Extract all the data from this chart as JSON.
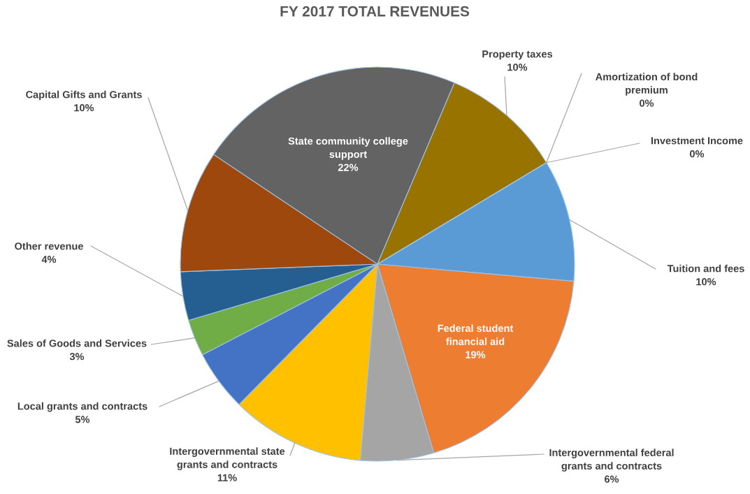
{
  "chart_data": {
    "type": "pie",
    "title": "FY 2017 TOTAL REVENUES",
    "categories": [
      "Tuition and fees",
      "Federal student financial aid",
      "Intergovernmental federal grants and contracts",
      "Intergovernmental state grants and contracts",
      "Local grants and contracts",
      "Sales of Goods and Services",
      "Other revenue",
      "Capital Gifts and Grants",
      "State community college support",
      "Property taxes",
      "Amortization of bond premium",
      "Investment Income"
    ],
    "values": [
      10,
      19,
      6,
      11,
      5,
      3,
      4,
      10,
      22,
      10,
      0,
      0
    ],
    "value_labels": [
      "10%",
      "19%",
      "6%",
      "11%",
      "5%",
      "3%",
      "4%",
      "10%",
      "22%",
      "10%",
      "0%",
      "0%"
    ],
    "colors": [
      "#5b9bd5",
      "#ed7d31",
      "#a5a5a5",
      "#ffc000",
      "#4472c4",
      "#70ad47",
      "#255e91",
      "#9e480e",
      "#636363",
      "#997300",
      "#264478",
      "#43682b"
    ]
  }
}
